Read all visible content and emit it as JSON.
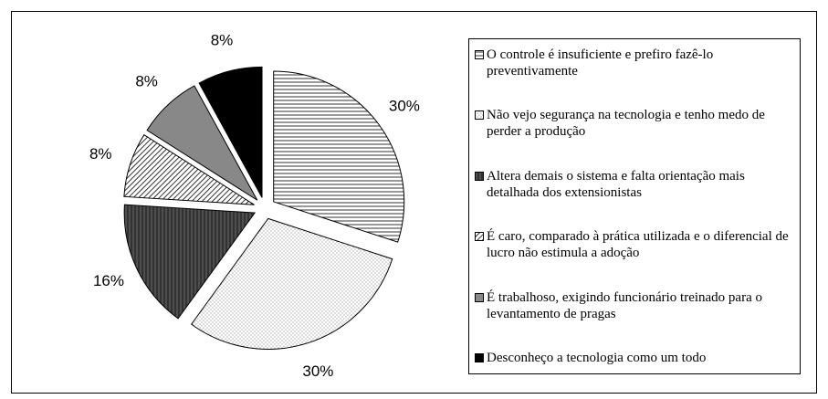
{
  "chart_data": {
    "type": "pie",
    "categories": [
      "O controle é insuficiente e prefiro fazê-lo preventivamente",
      "Não vejo segurança na tecnologia e tenho medo de perder a produção",
      "Altera demais o sistema e falta orientação mais detalhada dos extensionistas",
      "É caro, comparado à prática utilizada e o diferencial de lucro não estimula a adoção",
      "É trabalhoso, exigindo funcionário treinado para o levantamento de pragas",
      "Desconheço a tecnologia como um todo"
    ],
    "values": [
      30,
      30,
      16,
      8,
      8,
      8
    ],
    "value_labels": [
      "30%",
      "30%",
      "16%",
      "8%",
      "8%",
      "8%"
    ],
    "fills": [
      "horizontal-lines",
      "dots",
      "dark-hatch",
      "diagonal-lines",
      "gray",
      "black"
    ],
    "legend": "right"
  }
}
